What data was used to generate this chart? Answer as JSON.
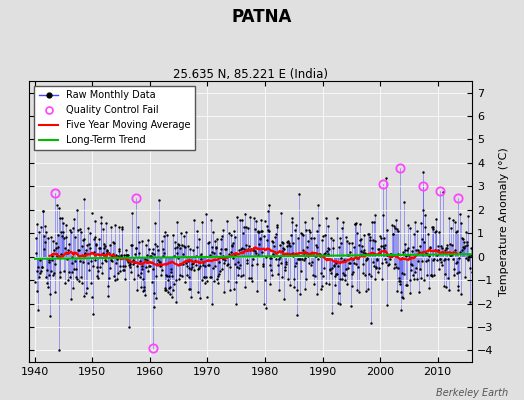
{
  "title": "PATNA",
  "subtitle": "25.635 N, 85.221 E (India)",
  "ylabel": "Temperature Anomaly (°C)",
  "credit": "Berkeley Earth",
  "xlim": [
    1939,
    2016
  ],
  "ylim": [
    -4.5,
    7.5
  ],
  "yticks": [
    -4,
    -3,
    -2,
    -1,
    0,
    1,
    2,
    3,
    4,
    5,
    6,
    7
  ],
  "xticks": [
    1940,
    1950,
    1960,
    1970,
    1980,
    1990,
    2000,
    2010
  ],
  "raw_line_color": "#4444ff",
  "raw_dot_color": "#000000",
  "moving_avg_color": "#ff0000",
  "trend_color": "#00bb00",
  "qc_fail_color": "#ff44ff",
  "background_color": "#e0e0e0"
}
